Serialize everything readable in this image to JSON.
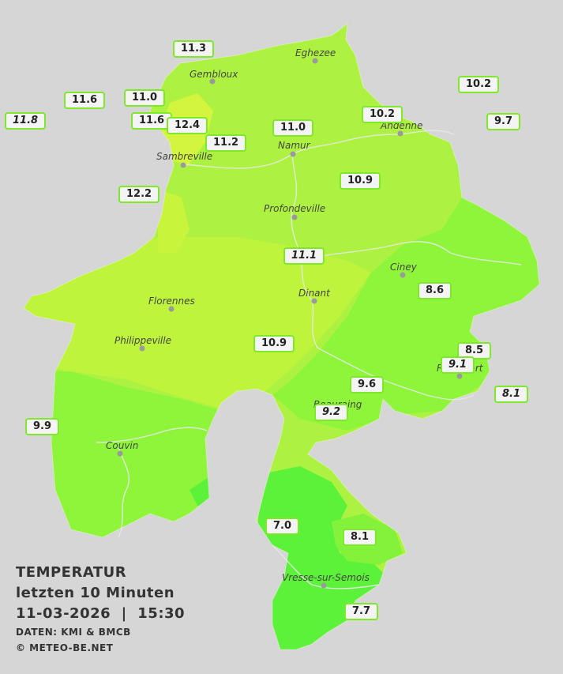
{
  "legend": {
    "title": "TEMPERATUR",
    "subtitle": "letzten 10 Minuten",
    "datetime": "11-03-2026  |  15:30",
    "source": "DATEN: KMI & BMCB",
    "copyright": "© METEO-BE.NET"
  },
  "cities": [
    "Eghezee",
    "Gembloux",
    "Andenne",
    "Namur",
    "Sambreville",
    "Profondeville",
    "Ciney",
    "Dinant",
    "Florennes",
    "Philippeville",
    "Rochefort",
    "Beauraing",
    "Couvin",
    "Vresse-sur-Semois"
  ],
  "readings": [
    "11.3",
    "10.2",
    "11.6",
    "11.0",
    "9.7",
    "11.8",
    "11.6",
    "12.4",
    "10.2",
    "11.0",
    "11.2",
    "10.9",
    "12.2",
    "11.1",
    "8.6",
    "10.9",
    "8.5",
    "9.1",
    "9.6",
    "8.1",
    "9.2",
    "9.9",
    "7.0",
    "8.1",
    "7.7"
  ],
  "colors": {
    "background": "#d6d6d6",
    "warm": "#c5f53a",
    "mid": "#aef241",
    "cool": "#8ef53a",
    "cold": "#5df23a",
    "border": "#7ee82a"
  }
}
